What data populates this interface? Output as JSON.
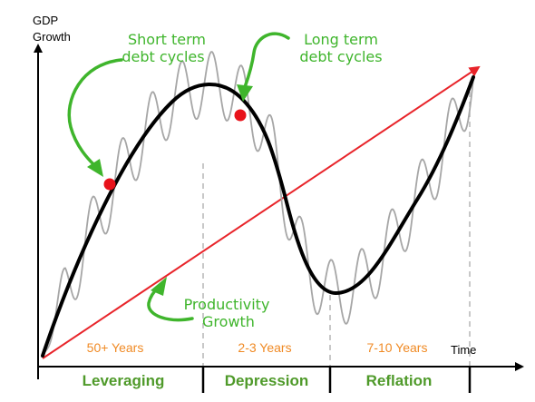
{
  "axes": {
    "y_label_line1": "GDP",
    "y_label_line2": "Growth",
    "x_label": "Time"
  },
  "annotations": {
    "short_term_line1": "Short term",
    "short_term_line2": "debt cycles",
    "long_term_line1": "Long term",
    "long_term_line2": "debt cycles",
    "productivity_line1": "Productivity",
    "productivity_line2": "Growth"
  },
  "phases": [
    {
      "duration": "50+ Years",
      "name": "Leveraging"
    },
    {
      "duration": "2-3 Years",
      "name": "Depression"
    },
    {
      "duration": "7-10 Years",
      "name": "Reflation"
    }
  ],
  "colors": {
    "annotation_green": "#3fb52c",
    "phase_name_green": "#4f9a2a",
    "duration_orange": "#f08a24",
    "trend_red": "#e8242a",
    "marker_red": "#e8121a",
    "long_cycle": "#000000",
    "short_cycle": "#a6a6a6",
    "divider_gray": "#aaaaaa",
    "axis": "#000000"
  },
  "icons": {
    "short_term_arrow": "curved-arrow-icon",
    "long_term_arrow": "curved-arrow-icon",
    "productivity_arrow": "curved-arrow-icon"
  }
}
